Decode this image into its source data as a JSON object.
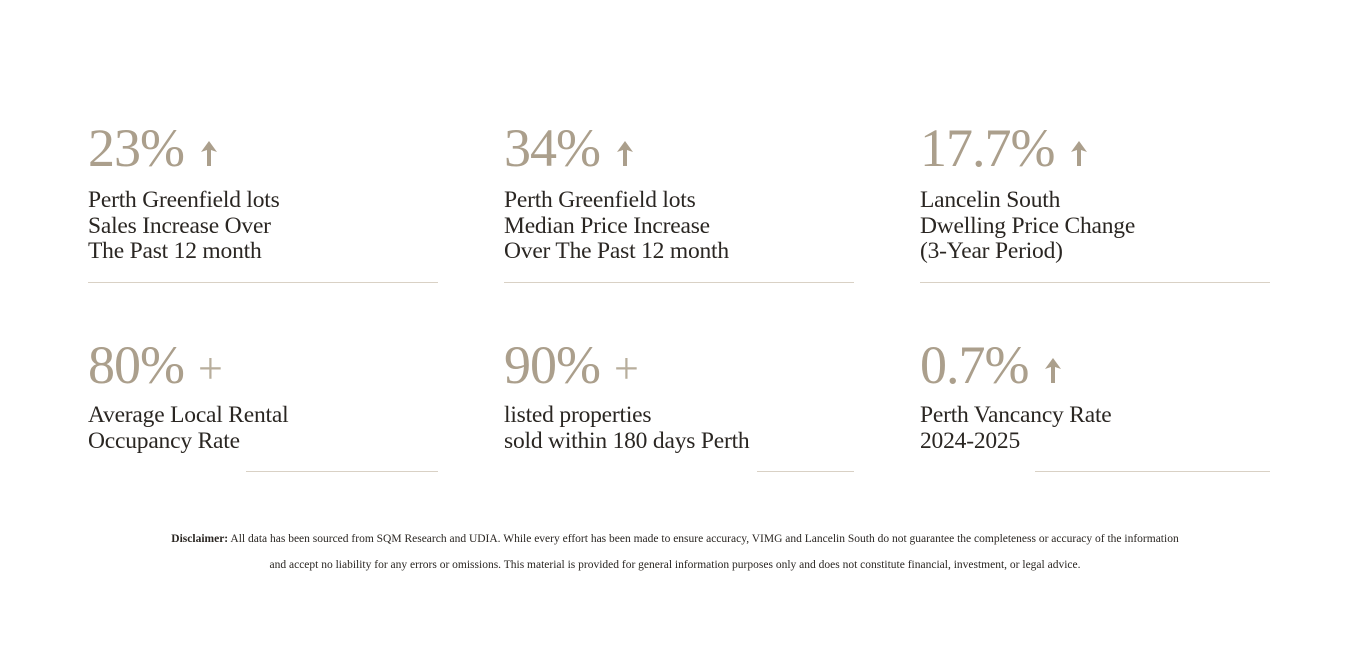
{
  "stats": [
    {
      "value": "23%",
      "label": [
        "Perth Greenfield lots",
        "Sales Increase Over",
        "The Past 12 month"
      ]
    },
    {
      "value": "34%",
      "label": [
        "Perth Greenfield lots",
        "Median Price Increase",
        "Over The Past 12 month"
      ]
    },
    {
      "value": "17.7%",
      "label": [
        "Lancelin South",
        "Dwelling Price Change",
        "(3-Year Period)"
      ]
    },
    {
      "value": "80%",
      "suffix": "+",
      "label": [
        "Average Local Rental",
        "Occupancy Rate"
      ]
    },
    {
      "value": "90%",
      "suffix": "+",
      "label": [
        "listed properties",
        "sold within 180 days Perth"
      ]
    },
    {
      "value": "0.7%",
      "label": [
        "Perth Vancancy Rate",
        "2024-2025"
      ]
    }
  ],
  "disclaimer": {
    "heading": "Disclaimer:",
    "lines": [
      "All data has been sourced from SQM Research and UDIA. While every effort has been made to ensure accuracy, VIMG and Lancelin South do not guarantee the completeness or accuracy of the information",
      "and accept no liability for any errors or omissions. This material is provided for general information purposes only and does not constitute financial, investment, or legal advice."
    ]
  }
}
